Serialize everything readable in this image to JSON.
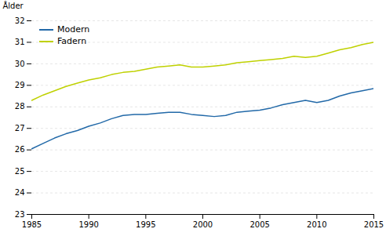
{
  "chart_data": {
    "type": "line",
    "ylabel": "Ålder",
    "x": [
      1985,
      1986,
      1987,
      1988,
      1989,
      1990,
      1991,
      1992,
      1993,
      1994,
      1995,
      1996,
      1997,
      1998,
      1999,
      2000,
      2001,
      2002,
      2003,
      2004,
      2005,
      2006,
      2007,
      2008,
      2009,
      2010,
      2011,
      2012,
      2013,
      2014,
      2015
    ],
    "series": [
      {
        "name": "Modern",
        "color": "#2269a8",
        "values": [
          26.05,
          26.3,
          26.55,
          26.75,
          26.9,
          27.1,
          27.25,
          27.45,
          27.6,
          27.65,
          27.65,
          27.7,
          27.75,
          27.75,
          27.65,
          27.6,
          27.55,
          27.6,
          27.75,
          27.8,
          27.85,
          27.95,
          28.1,
          28.2,
          28.3,
          28.2,
          28.3,
          28.5,
          28.65,
          28.75,
          28.85
        ]
      },
      {
        "name": "Fadern",
        "color": "#bfd100",
        "values": [
          28.3,
          28.55,
          28.75,
          28.95,
          29.1,
          29.25,
          29.35,
          29.5,
          29.6,
          29.65,
          29.75,
          29.85,
          29.9,
          29.95,
          29.85,
          29.85,
          29.9,
          29.95,
          30.05,
          30.1,
          30.15,
          30.2,
          30.25,
          30.35,
          30.3,
          30.35,
          30.5,
          30.65,
          30.75,
          30.9,
          31.0
        ]
      }
    ],
    "xlim": [
      1985,
      2015
    ],
    "xticks": [
      1985,
      1990,
      1995,
      2000,
      2005,
      2010,
      2015
    ],
    "ylim": [
      23,
      32
    ],
    "yticks": [
      23,
      24,
      25,
      26,
      27,
      28,
      29,
      30,
      31,
      32
    ],
    "grid": true,
    "legend": "upper left"
  }
}
